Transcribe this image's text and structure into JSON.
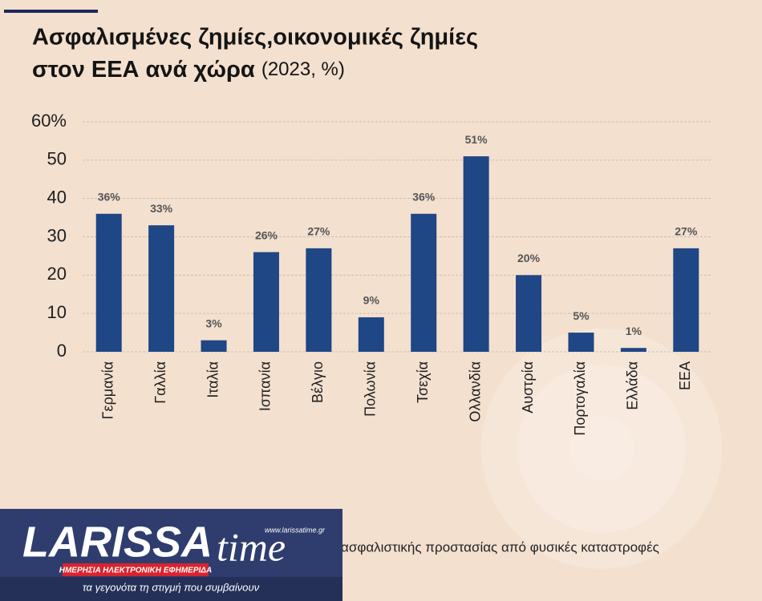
{
  "chart_data": {
    "type": "bar",
    "title": "Ασφαλισμένες ζημίες,οικονομικές ζημίες",
    "title_line2": "στον ΕΕΑ ανά χώρα",
    "subtitle": "(2023, %)",
    "categories": [
      "Γερμανία",
      "Γαλλία",
      "Ιταλία",
      "Ισπανία",
      "Βέλγιο",
      "Πολωνία",
      "Τσεχία",
      "Ολλανδία",
      "Αυστρία",
      "Πορτογαλία",
      "Ελλάδα",
      "ΕΕΑ"
    ],
    "values": [
      36,
      33,
      3,
      26,
      27,
      9,
      36,
      51,
      20,
      5,
      1,
      27
    ],
    "value_labels": [
      "36%",
      "33%",
      "3%",
      "26%",
      "27%",
      "9%",
      "36%",
      "51%",
      "20%",
      "5%",
      "1%",
      "27%"
    ],
    "color": "#1f4685",
    "ylim": [
      0,
      60
    ],
    "yticks": [
      0,
      10,
      20,
      30,
      40,
      50,
      {
        "value": 60,
        "label": "60%"
      }
    ],
    "grid": true
  },
  "note": "ασφαλιστικής προστασίας από φυσικές καταστροφές",
  "logo": {
    "name": "LARISSA",
    "time": "time",
    "url": "www.larissatime.gr",
    "tagline": "ΗΜΕΡΗΣΙΑ ΗΛΕΚΤΡΟΝΙΚΗ ΕΦΗΜΕΡΙΔΑ",
    "slogan": "τα γεγονότα τη στιγμή που συμβαίνουν"
  }
}
